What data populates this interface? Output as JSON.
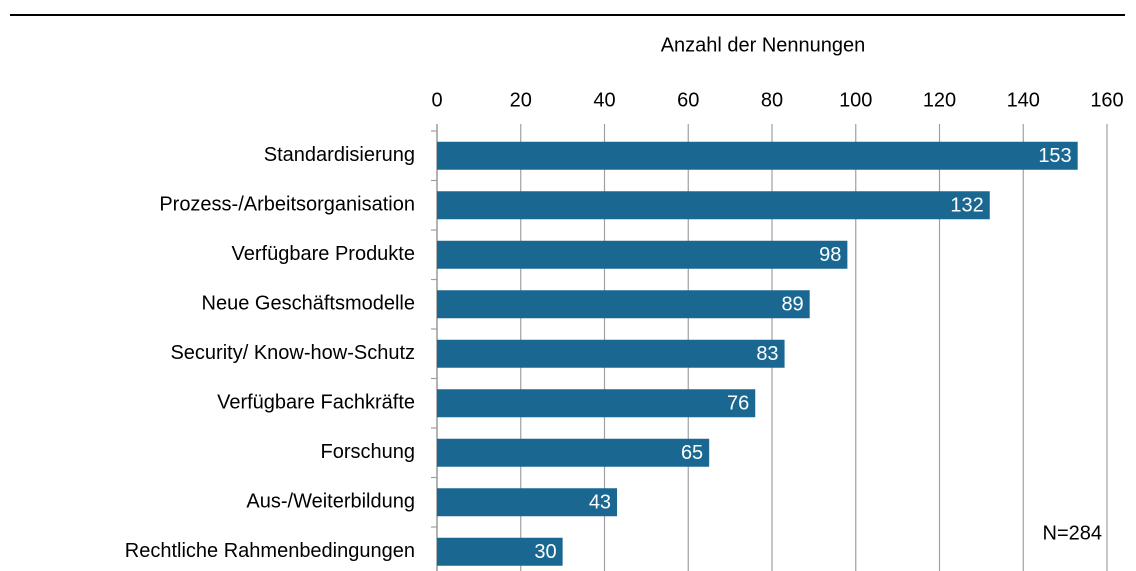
{
  "chart_data": {
    "type": "bar",
    "orientation": "horizontal",
    "xlabel": "Anzahl der Nennungen",
    "categories": [
      "Standardisierung",
      "Prozess-/Arbeitsorganisation",
      "Verfügbare Produkte",
      "Neue Geschäftsmodelle",
      "Security/ Know-how-Schutz",
      "Verfügbare Fachkräfte",
      "Forschung",
      "Aus-/Weiterbildung",
      "Rechtliche Rahmenbedingungen"
    ],
    "values": [
      153,
      132,
      98,
      89,
      83,
      76,
      65,
      43,
      30
    ],
    "color": "#1a6892",
    "xlim": [
      0,
      160
    ],
    "xticks": [
      0,
      20,
      40,
      60,
      80,
      100,
      120,
      140,
      160
    ],
    "grid": true,
    "annotation": "N=284"
  }
}
